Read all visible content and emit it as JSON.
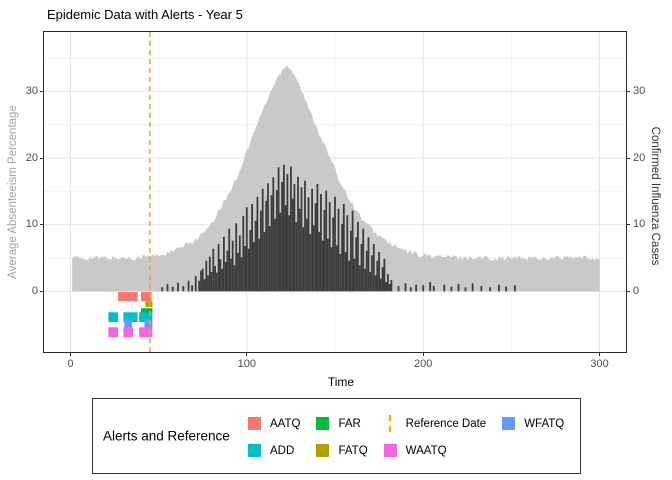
{
  "title": "Epidemic Data with Alerts - Year 5",
  "x_axis_title": "Time",
  "y_left_axis_title": "Average Absenteeism Percentage",
  "y_right_axis_title": "Confirmed Influenza Cases",
  "colors": {
    "panel_border": "#2b2b2b",
    "grid_major": "#e4e4e4",
    "grid_minor": "#f2f2f2",
    "absenteeism_area": "#c9c9c9",
    "influenza_bars": "#3d3d3d",
    "reference_line": "#FFA500",
    "tick_label": "#4d4d4d",
    "y_left_title": "#a3a3a3",
    "y_right_title": "#333333"
  },
  "chart_data": {
    "type": "area",
    "title": "Epidemic Data with Alerts - Year 5",
    "xlabel": "Time",
    "ylabel_left": "Average Absenteeism Percentage",
    "ylabel_right": "Confirmed Influenza Cases",
    "xlim": [
      -15,
      315
    ],
    "ylim": [
      -9.1,
      38.9
    ],
    "x_ticks": [
      0,
      100,
      200,
      300
    ],
    "x_minor": [
      50,
      150,
      250
    ],
    "y_ticks": [
      0,
      10,
      20,
      30
    ],
    "y_minor": [
      5,
      15,
      25,
      35
    ],
    "grid": true,
    "reference_date": 45,
    "series": [
      {
        "name": "Average Absenteeism Percentage",
        "type": "area",
        "color": "#c9c9c9",
        "points": [
          [
            1,
            5
          ],
          [
            10,
            5
          ],
          [
            20,
            5
          ],
          [
            30,
            5
          ],
          [
            40,
            5.1
          ],
          [
            45,
            5.3
          ],
          [
            50,
            5.4
          ],
          [
            55,
            5.7
          ],
          [
            60,
            6.2
          ],
          [
            65,
            6.9
          ],
          [
            70,
            7.6
          ],
          [
            75,
            8.6
          ],
          [
            80,
            10
          ],
          [
            85,
            12.5
          ],
          [
            88,
            13.8
          ],
          [
            90,
            14.8
          ],
          [
            95,
            17.5
          ],
          [
            100,
            21
          ],
          [
            105,
            24.5
          ],
          [
            108,
            26.5
          ],
          [
            112,
            29
          ],
          [
            115,
            30.8
          ],
          [
            118,
            32.3
          ],
          [
            120,
            33.3
          ],
          [
            122,
            34
          ],
          [
            124,
            33.6
          ],
          [
            126,
            33
          ],
          [
            128,
            32.1
          ],
          [
            130,
            30.8
          ],
          [
            133,
            28.8
          ],
          [
            136,
            26.8
          ],
          [
            140,
            24.4
          ],
          [
            144,
            22
          ],
          [
            148,
            19.5
          ],
          [
            152,
            17
          ],
          [
            156,
            15
          ],
          [
            160,
            13
          ],
          [
            164,
            11.4
          ],
          [
            168,
            10
          ],
          [
            172,
            9
          ],
          [
            176,
            8.1
          ],
          [
            180,
            7.4
          ],
          [
            185,
            6.6
          ],
          [
            190,
            6
          ],
          [
            195,
            5.7
          ],
          [
            200,
            5.4
          ],
          [
            210,
            5.2
          ],
          [
            220,
            5.1
          ],
          [
            240,
            5
          ],
          [
            260,
            5
          ],
          [
            280,
            5
          ],
          [
            300,
            5
          ]
        ]
      },
      {
        "name": "Confirmed Influenza Cases",
        "type": "bar",
        "color": "#3d3d3d",
        "points": [
          [
            52,
            0.6
          ],
          [
            55,
            1.1
          ],
          [
            58,
            0.7
          ],
          [
            61,
            1.3
          ],
          [
            64,
            0.8
          ],
          [
            67,
            1.6
          ],
          [
            69,
            0.9
          ],
          [
            71,
            2.3
          ],
          [
            73,
            1.6
          ],
          [
            74,
            3.1
          ],
          [
            75,
            3.4
          ],
          [
            76,
            1.8
          ],
          [
            77,
            4.6
          ],
          [
            78,
            2.4
          ],
          [
            79,
            5.2
          ],
          [
            80,
            2.9
          ],
          [
            81,
            6.4
          ],
          [
            82,
            3.8
          ],
          [
            83,
            2.8
          ],
          [
            84,
            7.1
          ],
          [
            85,
            4.8
          ],
          [
            86,
            3.4
          ],
          [
            87,
            8.2
          ],
          [
            88,
            4.4
          ],
          [
            89,
            6.1
          ],
          [
            90,
            9.4
          ],
          [
            91,
            4.9
          ],
          [
            92,
            7.6
          ],
          [
            93,
            3.9
          ],
          [
            94,
            10.2
          ],
          [
            95,
            5.8
          ],
          [
            96,
            8.4
          ],
          [
            97,
            5.1
          ],
          [
            98,
            11.3
          ],
          [
            99,
            6.8
          ],
          [
            100,
            12.6
          ],
          [
            101,
            6.4
          ],
          [
            102,
            9.2
          ],
          [
            103,
            13.1
          ],
          [
            104,
            7.4
          ],
          [
            105,
            10.6
          ],
          [
            106,
            14.2
          ],
          [
            107,
            7.9
          ],
          [
            108,
            12.1
          ],
          [
            109,
            15.4
          ],
          [
            110,
            8.9
          ],
          [
            111,
            13.6
          ],
          [
            112,
            16.2
          ],
          [
            113,
            9.8
          ],
          [
            114,
            14.4
          ],
          [
            115,
            17.1
          ],
          [
            116,
            10.9
          ],
          [
            117,
            15.2
          ],
          [
            118,
            18.6
          ],
          [
            119,
            11.8
          ],
          [
            120,
            16.4
          ],
          [
            121,
            19
          ],
          [
            122,
            12.9
          ],
          [
            123,
            17.6
          ],
          [
            124,
            11.4
          ],
          [
            125,
            18.7
          ],
          [
            126,
            13.9
          ],
          [
            127,
            16.1
          ],
          [
            128,
            10.4
          ],
          [
            129,
            17.2
          ],
          [
            130,
            12.4
          ],
          [
            131,
            15.6
          ],
          [
            132,
            9.6
          ],
          [
            133,
            16.6
          ],
          [
            134,
            10.9
          ],
          [
            135,
            14.1
          ],
          [
            136,
            8.6
          ],
          [
            137,
            15.4
          ],
          [
            138,
            9.9
          ],
          [
            139,
            13.2
          ],
          [
            140,
            16.1
          ],
          [
            141,
            8.9
          ],
          [
            142,
            14.6
          ],
          [
            143,
            7.6
          ],
          [
            144,
            12.2
          ],
          [
            145,
            15.1
          ],
          [
            146,
            7.9
          ],
          [
            147,
            13.4
          ],
          [
            148,
            6.6
          ],
          [
            149,
            11.1
          ],
          [
            150,
            14.2
          ],
          [
            151,
            6.9
          ],
          [
            152,
            12.4
          ],
          [
            153,
            5.6
          ],
          [
            154,
            10.1
          ],
          [
            155,
            13.1
          ],
          [
            156,
            5.9
          ],
          [
            157,
            11.4
          ],
          [
            158,
            4.6
          ],
          [
            159,
            9.1
          ],
          [
            160,
            12.1
          ],
          [
            161,
            4.9
          ],
          [
            162,
            8.1
          ],
          [
            163,
            10.4
          ],
          [
            164,
            3.9
          ],
          [
            165,
            7.1
          ],
          [
            166,
            9.4
          ],
          [
            167,
            3.4
          ],
          [
            168,
            6.1
          ],
          [
            169,
            8.1
          ],
          [
            170,
            2.9
          ],
          [
            171,
            5.4
          ],
          [
            172,
            7.1
          ],
          [
            173,
            2.4
          ],
          [
            174,
            4.6
          ],
          [
            175,
            5.9
          ],
          [
            176,
            1.9
          ],
          [
            177,
            3.6
          ],
          [
            178,
            4.9
          ],
          [
            179,
            1.4
          ],
          [
            180,
            2.6
          ],
          [
            181,
            1.1
          ],
          [
            182,
            1.7
          ],
          [
            186,
            0.8
          ],
          [
            190,
            1.2
          ],
          [
            193,
            0.6
          ],
          [
            196,
            1.0
          ],
          [
            200,
            0.9
          ],
          [
            204,
            1.4
          ],
          [
            206,
            0.8
          ],
          [
            212,
            1.0
          ],
          [
            216,
            0.7
          ],
          [
            220,
            1.1
          ],
          [
            224,
            0.6
          ],
          [
            228,
            1.2
          ],
          [
            233,
            0.8
          ],
          [
            238,
            0.6
          ],
          [
            243,
            1.0
          ],
          [
            247,
            0.7
          ],
          [
            252,
            0.9
          ]
        ]
      }
    ],
    "alerts": [
      {
        "name": "AATQ",
        "color": "#F8766D",
        "v_top": -0.1,
        "v_bottom": -1.5,
        "intervals": [
          [
            27,
            38
          ],
          [
            40,
            46
          ]
        ]
      },
      {
        "name": "FATQ",
        "color": "#B79F00",
        "v_top": -1.5,
        "v_bottom": -2.4,
        "intervals": [
          [
            42.5,
            46.5
          ]
        ]
      },
      {
        "name": "FAR",
        "color": "#00BA38",
        "v_top": -2.55,
        "v_bottom": -3.45,
        "intervals": [
          [
            40,
            46.5
          ]
        ]
      },
      {
        "name": "ADD",
        "color": "#00BFC4",
        "v_top": -3.15,
        "v_bottom": -4.6,
        "intervals": [
          [
            21.5,
            27
          ],
          [
            30,
            38
          ],
          [
            39,
            46.5
          ]
        ]
      },
      {
        "name": "WFATQ",
        "color": "#619CFF",
        "v_top": -4.2,
        "v_bottom": -5.7,
        "intervals": [
          [
            30.5,
            35
          ],
          [
            42,
            46.5
          ]
        ]
      },
      {
        "name": "WAATQ",
        "color": "#F564E3",
        "v_top": -5.4,
        "v_bottom": -6.9,
        "intervals": [
          [
            21.5,
            27
          ],
          [
            30,
            35.5
          ],
          [
            39,
            46.5
          ]
        ]
      }
    ],
    "legend": {
      "title": "Alerts and Reference",
      "position": "bottom",
      "entries": [
        {
          "label": "AATQ",
          "key": "swatch",
          "color": "#F8766D"
        },
        {
          "label": "ADD",
          "key": "swatch",
          "color": "#00BFC4"
        },
        {
          "label": "FAR",
          "key": "swatch",
          "color": "#00BA38"
        },
        {
          "label": "FATQ",
          "key": "swatch",
          "color": "#B79F00"
        },
        {
          "label": "Reference Date",
          "key": "dashed-line",
          "color": "#FFA500"
        },
        {
          "label": "WAATQ",
          "key": "swatch",
          "color": "#F564E3"
        },
        {
          "label": "WFATQ",
          "key": "swatch",
          "color": "#619CFF"
        }
      ]
    }
  }
}
